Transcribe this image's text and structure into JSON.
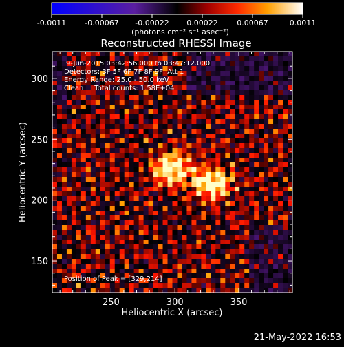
{
  "colorbar": {
    "tick_labels": [
      "-0.0011",
      "-0.00067",
      "-0.00022",
      "0.00022",
      "0.00067",
      "0.0011"
    ],
    "unit_label": "(photons cm⁻² s⁻¹ asec⁻²)",
    "range": [
      -0.0011,
      0.0011
    ]
  },
  "title": "Reconstructed RHESSI Image",
  "info": {
    "time_range": "9-Jun-2015 03:42:56.000 to 03:47:12.000",
    "detectors": "Detectors: 3F 5F 6F 7F 8F 9F, Att 1",
    "energy": "Energy Range: 25.0 - 50.0 keV",
    "clean": "Clean     Total counts: 1.58E+04",
    "peak": "Position of Peak = [329,214]"
  },
  "axes": {
    "xlabel": "Heliocentric X (arcsec)",
    "ylabel": "Heliocentric Y (arcsec)",
    "xticks": [
      "250",
      "300",
      "350"
    ],
    "yticks": [
      "150",
      "200",
      "250",
      "300"
    ],
    "xrange": [
      204,
      392
    ],
    "yrange": [
      124,
      322
    ]
  },
  "image": {
    "sources": [
      {
        "x": 297,
        "y": 225,
        "strength": 1.0
      },
      {
        "x": 329,
        "y": 214,
        "strength": 1.0
      }
    ]
  },
  "timestamp": "21-May-2022 16:53"
}
